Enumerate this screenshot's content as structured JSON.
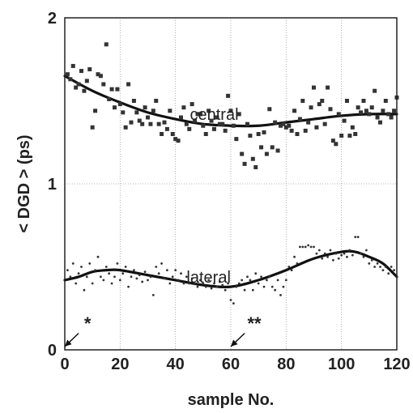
{
  "chart_data": {
    "type": "scatter",
    "xlabel": "sample No.",
    "ylabel": "< DGD > (ps)",
    "xlim": [
      0,
      120
    ],
    "ylim": [
      0,
      2
    ],
    "xticks": [
      0,
      20,
      40,
      60,
      80,
      100,
      120
    ],
    "yticks": [
      0,
      1,
      2
    ],
    "grid": true,
    "series": [
      {
        "name": "central",
        "marker": "square",
        "color": "#333333",
        "points": [
          [
            1,
            1.66
          ],
          [
            2,
            1.63
          ],
          [
            3,
            1.71
          ],
          [
            4,
            1.58
          ],
          [
            5,
            1.6
          ],
          [
            6,
            1.68
          ],
          [
            7,
            1.56
          ],
          [
            8,
            1.62
          ],
          [
            9,
            1.69
          ],
          [
            10,
            1.34
          ],
          [
            11,
            1.44
          ],
          [
            12,
            1.66
          ],
          [
            13,
            1.65
          ],
          [
            14,
            1.6
          ],
          [
            15,
            1.84
          ],
          [
            16,
            1.51
          ],
          [
            17,
            1.57
          ],
          [
            18,
            1.46
          ],
          [
            19,
            1.57
          ],
          [
            20,
            1.48
          ],
          [
            21,
            1.43
          ],
          [
            22,
            1.34
          ],
          [
            23,
            1.6
          ],
          [
            24,
            1.37
          ],
          [
            25,
            1.5
          ],
          [
            26,
            1.43
          ],
          [
            27,
            1.38
          ],
          [
            28,
            1.36
          ],
          [
            29,
            1.46
          ],
          [
            30,
            1.4
          ],
          [
            31,
            1.36
          ],
          [
            32,
            1.44
          ],
          [
            33,
            1.5
          ],
          [
            34,
            1.36
          ],
          [
            35,
            1.3
          ],
          [
            36,
            1.37
          ],
          [
            37,
            1.33
          ],
          [
            38,
            1.44
          ],
          [
            39,
            1.3
          ],
          [
            40,
            1.27
          ],
          [
            41,
            1.26
          ],
          [
            42,
            1.4
          ],
          [
            43,
            1.46
          ],
          [
            44,
            1.36
          ],
          [
            45,
            1.33
          ],
          [
            46,
            1.48
          ],
          [
            47,
            1.38
          ],
          [
            48,
            1.42
          ],
          [
            49,
            1.42
          ],
          [
            50,
            1.35
          ],
          [
            51,
            1.3
          ],
          [
            52,
            1.44
          ],
          [
            53,
            1.38
          ],
          [
            54,
            1.33
          ],
          [
            55,
            1.4
          ],
          [
            56,
            1.36
          ],
          [
            57,
            1.36
          ],
          [
            58,
            1.32
          ],
          [
            59,
            1.53
          ],
          [
            60,
            1.44
          ],
          [
            61,
            1.35
          ],
          [
            62,
            1.27
          ],
          [
            63,
            1.42
          ],
          [
            64,
            1.18
          ],
          [
            65,
            1.12
          ],
          [
            66,
            1.36
          ],
          [
            67,
            1.29
          ],
          [
            68,
            1.15
          ],
          [
            69,
            1.1
          ],
          [
            70,
            1.3
          ],
          [
            71,
            1.22
          ],
          [
            72,
            1.31
          ],
          [
            73,
            1.18
          ],
          [
            74,
            1.45
          ],
          [
            75,
            1.22
          ],
          [
            76,
            1.37
          ],
          [
            77,
            1.2
          ],
          [
            78,
            1.35
          ],
          [
            79,
            1.36
          ],
          [
            80,
            1.34
          ],
          [
            81,
            1.35
          ],
          [
            82,
            1.32
          ],
          [
            83,
            1.44
          ],
          [
            84,
            1.3
          ],
          [
            85,
            1.39
          ],
          [
            86,
            1.5
          ],
          [
            87,
            1.32
          ],
          [
            88,
            1.37
          ],
          [
            89,
            1.46
          ],
          [
            90,
            1.58
          ],
          [
            91,
            1.34
          ],
          [
            92,
            1.48
          ],
          [
            93,
            1.5
          ],
          [
            94,
            1.36
          ],
          [
            95,
            1.58
          ],
          [
            96,
            1.45
          ],
          [
            97,
            1.26
          ],
          [
            98,
            1.24
          ],
          [
            99,
            1.42
          ],
          [
            100,
            1.29
          ],
          [
            101,
            1.38
          ],
          [
            102,
            1.5
          ],
          [
            103,
            1.29
          ],
          [
            104,
            1.34
          ],
          [
            105,
            1.3
          ],
          [
            106,
            1.46
          ],
          [
            107,
            1.43
          ],
          [
            108,
            1.5
          ],
          [
            109,
            1.44
          ],
          [
            110,
            1.42
          ],
          [
            111,
            1.46
          ],
          [
            112,
            1.56
          ],
          [
            113,
            1.4
          ],
          [
            114,
            1.37
          ],
          [
            115,
            1.44
          ],
          [
            116,
            1.5
          ],
          [
            117,
            1.42
          ],
          [
            118,
            1.4
          ],
          [
            119,
            1.44
          ],
          [
            120,
            1.52
          ]
        ]
      },
      {
        "name": "lateral",
        "marker": "dot",
        "color": "#333333",
        "points": [
          [
            1,
            0.48
          ],
          [
            2,
            0.44
          ],
          [
            3,
            0.52
          ],
          [
            4,
            0.4
          ],
          [
            5,
            0.46
          ],
          [
            6,
            0.5
          ],
          [
            7,
            0.36
          ],
          [
            8,
            0.44
          ],
          [
            9,
            0.52
          ],
          [
            10,
            0.4
          ],
          [
            11,
            0.48
          ],
          [
            12,
            0.56
          ],
          [
            13,
            0.44
          ],
          [
            14,
            0.42
          ],
          [
            15,
            0.5
          ],
          [
            16,
            0.46
          ],
          [
            17,
            0.4
          ],
          [
            18,
            0.44
          ],
          [
            19,
            0.52
          ],
          [
            20,
            0.42
          ],
          [
            21,
            0.46
          ],
          [
            22,
            0.5
          ],
          [
            23,
            0.38
          ],
          [
            24,
            0.44
          ],
          [
            25,
            0.48
          ],
          [
            26,
            0.43
          ],
          [
            27,
            0.45
          ],
          [
            28,
            0.41
          ],
          [
            29,
            0.47
          ],
          [
            30,
            0.42
          ],
          [
            31,
            0.44
          ],
          [
            32,
            0.33
          ],
          [
            33,
            0.5
          ],
          [
            34,
            0.46
          ],
          [
            35,
            0.52
          ],
          [
            36,
            0.43
          ],
          [
            37,
            0.48
          ],
          [
            38,
            0.4
          ],
          [
            39,
            0.44
          ],
          [
            40,
            0.48
          ],
          [
            41,
            0.42
          ],
          [
            42,
            0.46
          ],
          [
            43,
            0.4
          ],
          [
            44,
            0.44
          ],
          [
            45,
            0.4
          ],
          [
            46,
            0.43
          ],
          [
            47,
            0.4
          ],
          [
            48,
            0.38
          ],
          [
            49,
            0.42
          ],
          [
            50,
            0.4
          ],
          [
            51,
            0.38
          ],
          [
            52,
            0.42
          ],
          [
            53,
            0.37
          ],
          [
            54,
            0.4
          ],
          [
            55,
            0.38
          ],
          [
            56,
            0.41
          ],
          [
            57,
            0.39
          ],
          [
            58,
            0.36
          ],
          [
            59,
            0.4
          ],
          [
            60,
            0.3
          ],
          [
            61,
            0.28
          ],
          [
            62,
            0.38
          ],
          [
            63,
            0.4
          ],
          [
            64,
            0.42
          ],
          [
            65,
            0.36
          ],
          [
            66,
            0.44
          ],
          [
            67,
            0.42
          ],
          [
            68,
            0.36
          ],
          [
            69,
            0.46
          ],
          [
            70,
            0.4
          ],
          [
            71,
            0.44
          ],
          [
            72,
            0.38
          ],
          [
            73,
            0.42
          ],
          [
            74,
            0.44
          ],
          [
            75,
            0.38
          ],
          [
            76,
            0.36
          ],
          [
            77,
            0.42
          ],
          [
            78,
            0.33
          ],
          [
            79,
            0.38
          ],
          [
            80,
            0.42
          ],
          [
            81,
            0.5
          ],
          [
            82,
            0.48
          ],
          [
            83,
            0.56
          ],
          [
            84,
            0.52
          ],
          [
            85,
            0.62
          ],
          [
            86,
            0.62
          ],
          [
            87,
            0.62
          ],
          [
            88,
            0.63
          ],
          [
            89,
            0.62
          ],
          [
            90,
            0.62
          ],
          [
            91,
            0.58
          ],
          [
            92,
            0.6
          ],
          [
            93,
            0.55
          ],
          [
            94,
            0.58
          ],
          [
            95,
            0.56
          ],
          [
            96,
            0.6
          ],
          [
            97,
            0.54
          ],
          [
            98,
            0.58
          ],
          [
            99,
            0.55
          ],
          [
            100,
            0.57
          ],
          [
            101,
            0.58
          ],
          [
            102,
            0.56
          ],
          [
            103,
            0.6
          ],
          [
            104,
            0.57
          ],
          [
            105,
            0.68
          ],
          [
            106,
            0.68
          ],
          [
            107,
            0.58
          ],
          [
            108,
            0.56
          ],
          [
            109,
            0.6
          ],
          [
            110,
            0.52
          ],
          [
            111,
            0.54
          ],
          [
            112,
            0.5
          ],
          [
            113,
            0.52
          ],
          [
            114,
            0.5
          ],
          [
            115,
            0.48
          ],
          [
            116,
            0.5
          ],
          [
            117,
            0.46
          ],
          [
            118,
            0.5
          ],
          [
            119,
            0.48
          ],
          [
            120,
            0.44
          ]
        ]
      }
    ],
    "fit_curves": [
      {
        "series": "central",
        "points": [
          [
            0,
            1.65
          ],
          [
            10,
            1.56
          ],
          [
            20,
            1.49
          ],
          [
            30,
            1.43
          ],
          [
            40,
            1.39
          ],
          [
            50,
            1.36
          ],
          [
            60,
            1.35
          ],
          [
            70,
            1.35
          ],
          [
            80,
            1.37
          ],
          [
            90,
            1.39
          ],
          [
            100,
            1.41
          ],
          [
            110,
            1.42
          ],
          [
            120,
            1.42
          ]
        ]
      },
      {
        "series": "lateral",
        "points": [
          [
            0,
            0.42
          ],
          [
            5,
            0.44
          ],
          [
            10,
            0.47
          ],
          [
            15,
            0.48
          ],
          [
            20,
            0.48
          ],
          [
            30,
            0.45
          ],
          [
            40,
            0.42
          ],
          [
            50,
            0.39
          ],
          [
            60,
            0.38
          ],
          [
            70,
            0.42
          ],
          [
            80,
            0.48
          ],
          [
            90,
            0.55
          ],
          [
            100,
            0.59
          ],
          [
            105,
            0.59
          ],
          [
            110,
            0.56
          ],
          [
            115,
            0.52
          ],
          [
            120,
            0.44
          ]
        ]
      }
    ],
    "annotations": [
      {
        "text": "central",
        "x": 54,
        "y": 1.42,
        "color": "#222222"
      },
      {
        "text": "lateral",
        "x": 52,
        "y": 0.44,
        "color": "#222222"
      },
      {
        "text": "*",
        "x": 7,
        "y": 0.17,
        "color": "#222222"
      },
      {
        "text": "**",
        "x": 66,
        "y": 0.17,
        "color": "#222222"
      }
    ],
    "arrows": [
      {
        "name": "arrow-star",
        "from": [
          5,
          0.1
        ],
        "to": [
          0,
          0.02
        ]
      },
      {
        "name": "arrow-double-star",
        "from": [
          65,
          0.1
        ],
        "to": [
          60,
          0.02
        ]
      }
    ]
  }
}
